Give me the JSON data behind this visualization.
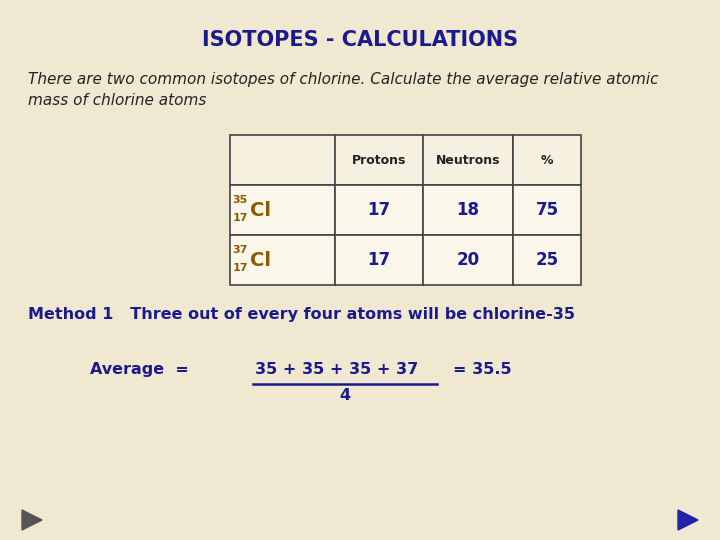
{
  "title": "ISOTOPES - CALCULATIONS",
  "title_color": "#1a1a8c",
  "bg_color": "#f0e8d0",
  "intro_text": "There are two common isotopes of chlorine. Calculate the average relative atomic\nmass of chlorine atoms",
  "table": {
    "headers": [
      "",
      "Protons",
      "Neutrons",
      "%"
    ],
    "rows": [
      [
        "35_17_Cl",
        "17",
        "18",
        "75"
      ],
      [
        "37_17_Cl",
        "17",
        "20",
        "25"
      ]
    ]
  },
  "method_text": "Method 1   Three out of every four atoms will be chlorine-35",
  "avg_label": "Average  =",
  "avg_numerator": "35 + 35 + 35 + 37",
  "avg_denominator": "4",
  "avg_result": "= 35.5",
  "dark_blue": "#1a1a8c",
  "isotope_color": "#8b5a00",
  "table_border_color": "#444444",
  "header_bg": "#f5f0e0",
  "cell_bg": "#faf6ea",
  "arrow_left_color": "#555555",
  "arrow_right_color": "#2222aa"
}
